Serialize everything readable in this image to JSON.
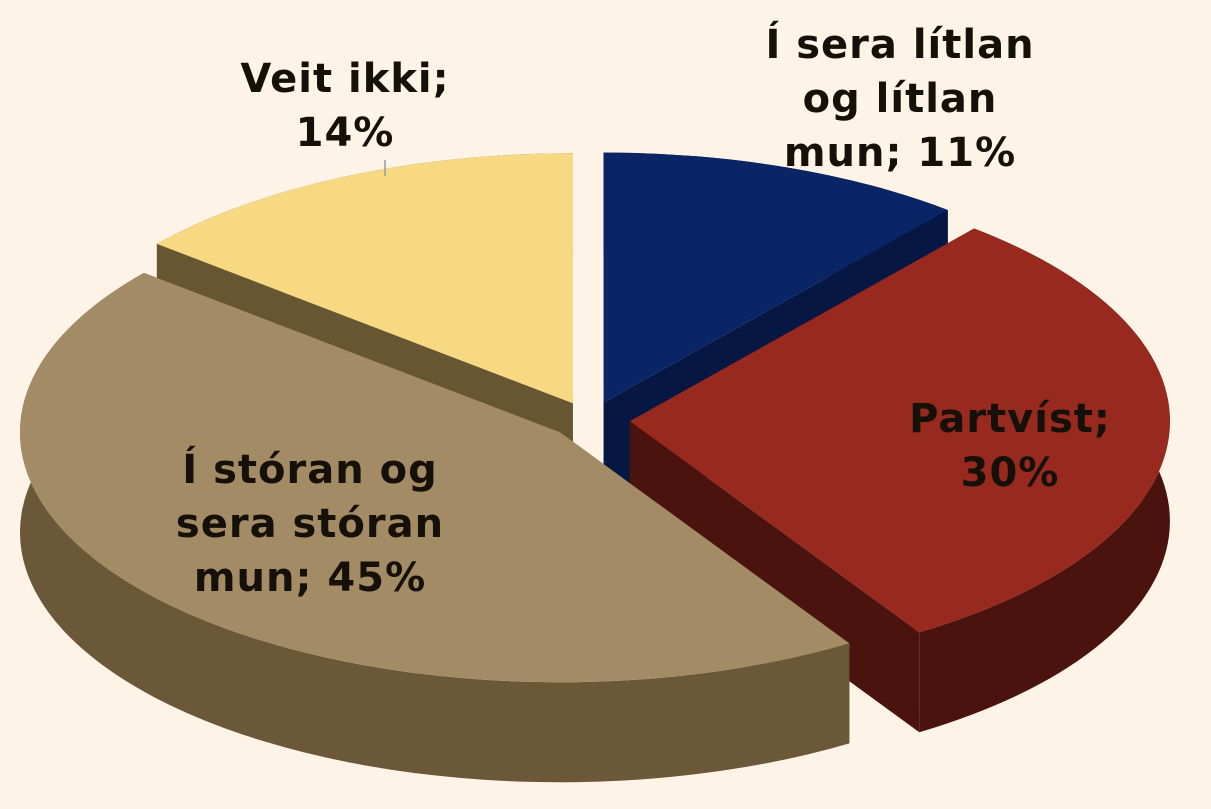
{
  "chart_data": {
    "type": "pie",
    "categories": [
      "Í sera lítlan og lítlan mun;",
      "Partvíst;",
      "Í stóran og sera stóran mun;",
      "Veit ikki;"
    ],
    "values": [
      11,
      30,
      45,
      14
    ],
    "value_labels": [
      "11%",
      "30%",
      "45%",
      "14%"
    ],
    "colors": [
      "#0a2566",
      "#98291e",
      "#a38b66",
      "#f8d983"
    ],
    "side_colors": [
      "#061744",
      "#4a130d",
      "#6a5839",
      "#665631"
    ]
  }
}
